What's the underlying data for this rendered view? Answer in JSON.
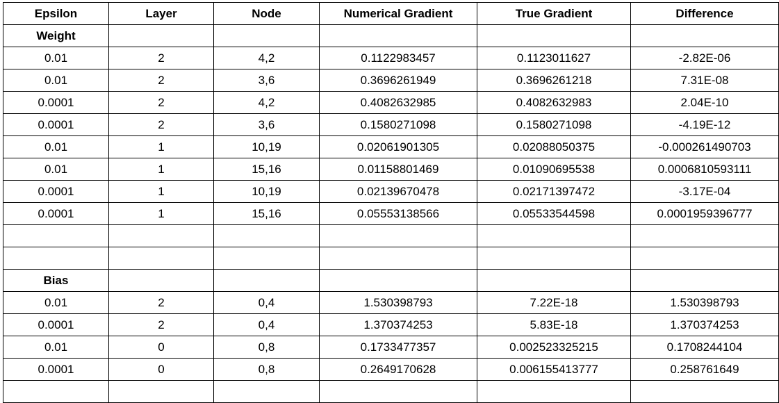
{
  "headers": [
    "Epsilon",
    "Layer",
    "Node",
    "Numerical Gradient",
    "True Gradient",
    "Difference"
  ],
  "weight_section": {
    "label": "Weight",
    "rows": [
      [
        "0.01",
        "2",
        "4,2",
        "0.1122983457",
        "0.1123011627",
        "-2.82E-06"
      ],
      [
        "0.01",
        "2",
        "3,6",
        "0.3696261949",
        "0.3696261218",
        "7.31E-08"
      ],
      [
        "0.0001",
        "2",
        "4,2",
        "0.4082632985",
        "0.4082632983",
        "2.04E-10"
      ],
      [
        "0.0001",
        "2",
        "3,6",
        "0.1580271098",
        "0.1580271098",
        "-4.19E-12"
      ],
      [
        "0.01",
        "1",
        "10,19",
        "0.02061901305",
        "0.02088050375",
        "-0.000261490703"
      ],
      [
        "0.01",
        "1",
        "15,16",
        "0.01158801469",
        "0.01090695538",
        "0.0006810593111"
      ],
      [
        "0.0001",
        "1",
        "10,19",
        "0.02139670478",
        "0.02171397472",
        "-3.17E-04"
      ],
      [
        "0.0001",
        "1",
        "15,16",
        "0.05553138566",
        "0.05533544598",
        "0.0001959396777"
      ]
    ]
  },
  "bias_section": {
    "label": "Bias",
    "rows": [
      [
        "0.01",
        "2",
        "0,4",
        "1.530398793",
        "7.22E-18",
        "1.530398793"
      ],
      [
        "0.0001",
        "2",
        "0,4",
        "1.370374253",
        "5.83E-18",
        "1.370374253"
      ],
      [
        "0.01",
        "0",
        "0,8",
        "0.1733477357",
        "0.002523325215",
        "0.1708244104"
      ],
      [
        "0.0001",
        "0",
        "0,8",
        "0.2649170628",
        "0.006155413777",
        "0.258761649"
      ]
    ]
  }
}
